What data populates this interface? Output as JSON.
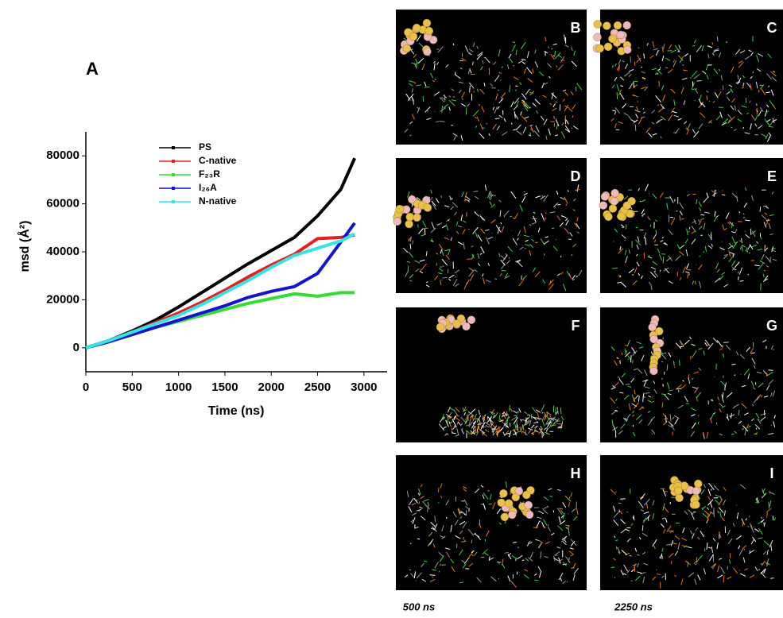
{
  "chart_data": {
    "type": "line",
    "panel_label": "A",
    "x_label": "Time (ns)",
    "y_label": "msd (Å²)",
    "x": [
      0,
      250,
      500,
      750,
      1000,
      1250,
      1500,
      1750,
      2000,
      2250,
      2500,
      2750,
      2900
    ],
    "series": [
      {
        "name": "PS",
        "color": "#000000",
        "values": [
          0,
          3000,
          7000,
          11500,
          17000,
          23000,
          29000,
          35000,
          40500,
          46000,
          55000,
          66000,
          79000
        ]
      },
      {
        "name": "C-native",
        "color": "#e62020",
        "values": [
          0,
          3000,
          6500,
          10500,
          14500,
          19000,
          24000,
          29500,
          34500,
          39000,
          45500,
          46000,
          47000
        ]
      },
      {
        "name": "F₂₃R",
        "color": "#33dd33",
        "values": [
          0,
          2500,
          5500,
          8500,
          11000,
          13500,
          16000,
          18500,
          20500,
          22500,
          21500,
          23000,
          23000
        ]
      },
      {
        "name": "I₂₆A",
        "color": "#1414d0",
        "values": [
          0,
          2500,
          5500,
          8500,
          11500,
          14500,
          17500,
          21000,
          23500,
          25500,
          31000,
          44000,
          52000
        ]
      },
      {
        "name": "N-native",
        "color": "#33e5e5",
        "values": [
          0,
          3000,
          6500,
          10000,
          13500,
          18000,
          23000,
          28000,
          33500,
          38500,
          41500,
          44500,
          47500
        ]
      }
    ],
    "xlim": [
      0,
      3250
    ],
    "xticks": [
      0,
      500,
      1000,
      1500,
      2000,
      2500,
      3000
    ],
    "ylim": [
      -10000,
      90000
    ],
    "yticks": [
      0,
      20000,
      40000,
      60000,
      80000
    ]
  },
  "panels": [
    "B",
    "C",
    "D",
    "E",
    "F",
    "G",
    "H",
    "I"
  ],
  "captions": [
    "500 ns",
    "2250 ns"
  ]
}
